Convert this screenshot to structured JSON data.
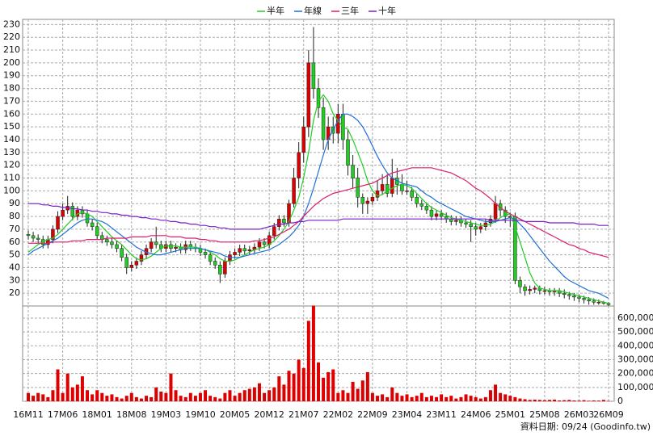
{
  "chart_data": {
    "type": "candlestick",
    "legend": "top",
    "grid": true,
    "up_color": "#dd0000",
    "down_color": "#22cc22",
    "volume_color": "#dd0000",
    "footnote": "資料日期: 09/24 (Goodinfo.tw)",
    "categories": [
      "16M11",
      null,
      null,
      null,
      null,
      null,
      null,
      "17M06",
      null,
      null,
      null,
      null,
      null,
      null,
      "18M01",
      null,
      null,
      null,
      null,
      null,
      null,
      "18M08",
      null,
      null,
      null,
      null,
      null,
      null,
      "19M03",
      null,
      null,
      null,
      null,
      null,
      null,
      "19M10",
      null,
      null,
      null,
      null,
      null,
      null,
      "20M05",
      null,
      null,
      null,
      null,
      null,
      null,
      "20M12",
      null,
      null,
      null,
      null,
      null,
      null,
      "21M07",
      null,
      null,
      null,
      null,
      null,
      null,
      "22M02",
      null,
      null,
      null,
      null,
      null,
      null,
      "22M09",
      null,
      null,
      null,
      null,
      null,
      null,
      "23M04",
      null,
      null,
      null,
      null,
      null,
      null,
      "23M11",
      null,
      null,
      null,
      null,
      null,
      null,
      "24M06",
      null,
      null,
      null,
      null,
      null,
      null,
      "25M01",
      null,
      null,
      null,
      null,
      null,
      null,
      "25M08",
      null,
      null,
      null,
      null,
      null,
      null,
      "26M03",
      null,
      null,
      null,
      null,
      null,
      "26M09"
    ],
    "open": [
      66,
      65,
      63,
      62,
      58,
      62,
      70,
      80,
      85,
      88,
      80,
      85,
      82,
      75,
      72,
      65,
      62,
      60,
      58,
      55,
      48,
      40,
      42,
      45,
      50,
      55,
      60,
      58,
      55,
      58,
      55,
      56,
      54,
      58,
      56,
      55,
      52,
      50,
      45,
      42,
      35,
      45,
      50,
      52,
      55,
      53,
      54,
      56,
      60,
      58,
      65,
      72,
      78,
      75,
      90,
      110,
      130,
      150,
      200,
      180,
      165,
      140,
      150,
      145,
      160,
      140,
      120,
      110,
      95,
      90,
      92,
      95,
      100,
      105,
      98,
      110,
      105,
      100,
      100,
      95,
      90,
      88,
      85,
      80,
      82,
      80,
      78,
      76,
      77,
      75,
      74,
      72,
      70,
      72,
      75,
      78,
      90,
      85,
      80,
      80,
      30,
      25,
      22,
      23,
      24,
      22,
      22,
      21,
      22,
      20,
      19,
      18,
      17,
      16,
      15,
      14,
      13,
      13,
      12
    ],
    "high": [
      69,
      68,
      66,
      65,
      65,
      73,
      84,
      90,
      96,
      91,
      88,
      88,
      85,
      78,
      75,
      68,
      65,
      63,
      61,
      58,
      51,
      45,
      48,
      53,
      58,
      63,
      72,
      61,
      61,
      61,
      59,
      59,
      61,
      61,
      59,
      58,
      55,
      53,
      48,
      45,
      48,
      53,
      55,
      58,
      58,
      57,
      59,
      63,
      63,
      68,
      75,
      81,
      81,
      93,
      118,
      138,
      158,
      210,
      228,
      188,
      173,
      158,
      158,
      168,
      168,
      148,
      128,
      118,
      98,
      95,
      98,
      108,
      113,
      113,
      125,
      118,
      113,
      108,
      103,
      98,
      93,
      91,
      88,
      85,
      85,
      83,
      81,
      80,
      80,
      78,
      77,
      75,
      75,
      78,
      81,
      96,
      93,
      88,
      83,
      83,
      33,
      27,
      26,
      26,
      26,
      25,
      24,
      24,
      24,
      23,
      21,
      20,
      19,
      18,
      17,
      16,
      15,
      14,
      13
    ],
    "low": [
      62,
      60,
      59,
      55,
      55,
      59,
      67,
      77,
      82,
      77,
      77,
      79,
      72,
      69,
      62,
      59,
      57,
      55,
      52,
      45,
      35,
      37,
      39,
      42,
      47,
      52,
      55,
      52,
      52,
      52,
      52,
      51,
      51,
      53,
      52,
      49,
      47,
      42,
      39,
      28,
      32,
      42,
      47,
      49,
      50,
      50,
      51,
      53,
      55,
      55,
      62,
      69,
      72,
      72,
      87,
      102,
      122,
      142,
      172,
      157,
      132,
      132,
      137,
      137,
      132,
      112,
      102,
      87,
      82,
      82,
      89,
      92,
      97,
      95,
      95,
      97,
      97,
      97,
      92,
      87,
      85,
      82,
      77,
      77,
      77,
      75,
      73,
      73,
      72,
      71,
      60,
      65,
      67,
      69,
      72,
      75,
      80,
      75,
      72,
      27,
      20,
      18,
      19,
      20,
      19,
      19,
      18,
      18,
      17,
      16,
      15,
      14,
      13,
      12,
      11,
      11,
      11,
      11,
      10
    ],
    "close": [
      65,
      63,
      62,
      58,
      62,
      70,
      80,
      85,
      88,
      80,
      85,
      82,
      75,
      72,
      65,
      62,
      60,
      58,
      55,
      48,
      40,
      42,
      45,
      50,
      55,
      60,
      58,
      55,
      58,
      55,
      56,
      54,
      58,
      56,
      55,
      52,
      50,
      45,
      42,
      35,
      45,
      50,
      52,
      55,
      53,
      54,
      56,
      60,
      58,
      65,
      72,
      78,
      75,
      90,
      110,
      130,
      150,
      200,
      180,
      165,
      140,
      150,
      145,
      160,
      140,
      120,
      110,
      95,
      90,
      92,
      95,
      100,
      105,
      98,
      110,
      105,
      100,
      100,
      95,
      90,
      88,
      85,
      80,
      82,
      80,
      78,
      76,
      77,
      75,
      74,
      72,
      70,
      72,
      75,
      78,
      90,
      85,
      80,
      80,
      30,
      25,
      22,
      23,
      24,
      22,
      22,
      21,
      22,
      20,
      19,
      18,
      17,
      16,
      15,
      14,
      13,
      13,
      12,
      11
    ],
    "volume": [
      60000,
      40000,
      60000,
      50000,
      30000,
      80000,
      230000,
      60000,
      200000,
      100000,
      120000,
      180000,
      80000,
      50000,
      80000,
      60000,
      40000,
      50000,
      30000,
      20000,
      40000,
      60000,
      30000,
      20000,
      40000,
      30000,
      100000,
      70000,
      60000,
      200000,
      80000,
      40000,
      30000,
      60000,
      40000,
      60000,
      80000,
      40000,
      30000,
      20000,
      60000,
      80000,
      40000,
      60000,
      80000,
      90000,
      100000,
      130000,
      60000,
      80000,
      100000,
      180000,
      120000,
      220000,
      200000,
      300000,
      240000,
      580000,
      690000,
      280000,
      170000,
      210000,
      230000,
      60000,
      80000,
      60000,
      140000,
      90000,
      150000,
      210000,
      60000,
      40000,
      50000,
      30000,
      100000,
      60000,
      40000,
      50000,
      30000,
      40000,
      60000,
      30000,
      40000,
      30000,
      50000,
      30000,
      40000,
      20000,
      30000,
      50000,
      40000,
      30000,
      20000,
      30000,
      80000,
      120000,
      60000,
      50000,
      40000,
      30000,
      20000,
      15000,
      10000,
      12000,
      10000,
      8000,
      10000,
      12000,
      6000,
      8000,
      10000,
      6000,
      5000,
      8000,
      4000,
      6000,
      5000,
      10000,
      3000
    ],
    "series": [
      {
        "name": "半年",
        "color": "#22cc22",
        "values": [
          52,
          55,
          58,
          60,
          62,
          63,
          66,
          70,
          74,
          78,
          82,
          83,
          82,
          80,
          76,
          72,
          68,
          64,
          61,
          58,
          54,
          50,
          47,
          46,
          47,
          49,
          52,
          55,
          57,
          57,
          57,
          56,
          56,
          56,
          56,
          55,
          54,
          52,
          50,
          47,
          45,
          45,
          46,
          48,
          50,
          52,
          54,
          55,
          56,
          58,
          61,
          65,
          70,
          76,
          85,
          95,
          110,
          130,
          155,
          170,
          175,
          170,
          160,
          155,
          150,
          148,
          140,
          130,
          120,
          108,
          100,
          96,
          97,
          100,
          102,
          104,
          105,
          104,
          102,
          98,
          94,
          90,
          87,
          85,
          83,
          81,
          79,
          78,
          77,
          76,
          75,
          74,
          73,
          73,
          74,
          76,
          79,
          81,
          82,
          72,
          60,
          48,
          36,
          28,
          24,
          23,
          22,
          22,
          22,
          21,
          20,
          19,
          18,
          17,
          16,
          15,
          14,
          13,
          12
        ]
      },
      {
        "name": "年線",
        "color": "#1e6fd9",
        "values": [
          50,
          53,
          55,
          57,
          59,
          61,
          63,
          66,
          69,
          72,
          75,
          77,
          78,
          78,
          77,
          76,
          74,
          71,
          68,
          65,
          62,
          59,
          56,
          54,
          52,
          51,
          50,
          50,
          51,
          52,
          53,
          54,
          55,
          55,
          55,
          55,
          54,
          53,
          52,
          51,
          49,
          48,
          48,
          48,
          49,
          50,
          51,
          52,
          53,
          54,
          56,
          58,
          61,
          64,
          68,
          73,
          80,
          90,
          102,
          115,
          128,
          140,
          148,
          155,
          160,
          160,
          158,
          155,
          150,
          143,
          135,
          127,
          120,
          114,
          110,
          108,
          106,
          105,
          104,
          103,
          100,
          97,
          95,
          92,
          90,
          88,
          86,
          84,
          82,
          80,
          79,
          78,
          77,
          76,
          76,
          76,
          77,
          78,
          79,
          78,
          74,
          70,
          65,
          60,
          55,
          50,
          45,
          41,
          37,
          33,
          30,
          28,
          26,
          24,
          22,
          21,
          20,
          18,
          16
        ]
      },
      {
        "name": "三年",
        "color": "#dc1e6e",
        "values": [
          59,
          59,
          59,
          59,
          59,
          60,
          60,
          60,
          60,
          61,
          61,
          61,
          62,
          62,
          62,
          62,
          63,
          63,
          63,
          63,
          63,
          64,
          64,
          64,
          64,
          65,
          65,
          65,
          65,
          64,
          64,
          64,
          63,
          63,
          63,
          62,
          62,
          61,
          61,
          60,
          60,
          60,
          60,
          60,
          60,
          60,
          61,
          61,
          62,
          63,
          64,
          66,
          68,
          70,
          73,
          76,
          80,
          84,
          88,
          91,
          94,
          96,
          98,
          99,
          100,
          101,
          102,
          103,
          104,
          105,
          106,
          108,
          110,
          112,
          114,
          115,
          116,
          117,
          118,
          118,
          118,
          118,
          118,
          117,
          116,
          115,
          114,
          112,
          110,
          108,
          105,
          102,
          100,
          97,
          94,
          90,
          87,
          84,
          82,
          80,
          78,
          76,
          74,
          72,
          70,
          68,
          66,
          64,
          62,
          60,
          58,
          57,
          55,
          54,
          52,
          51,
          50,
          49,
          48
        ]
      },
      {
        "name": "十年",
        "color": "#7a1ec8",
        "values": [
          90,
          90,
          90,
          89,
          89,
          88,
          88,
          87,
          87,
          86,
          86,
          85,
          85,
          84,
          84,
          83,
          83,
          82,
          82,
          81,
          81,
          80,
          80,
          79,
          79,
          78,
          78,
          77,
          77,
          76,
          76,
          75,
          75,
          74,
          74,
          73,
          73,
          72,
          72,
          71,
          71,
          70,
          70,
          70,
          70,
          70,
          70,
          70,
          71,
          72,
          73,
          74,
          74,
          75,
          75,
          76,
          76,
          77,
          77,
          77,
          77,
          77,
          77,
          77,
          78,
          78,
          78,
          78,
          78,
          78,
          78,
          78,
          78,
          78,
          78,
          78,
          78,
          78,
          78,
          78,
          78,
          78,
          78,
          78,
          78,
          78,
          78,
          78,
          78,
          78,
          78,
          78,
          78,
          78,
          77,
          77,
          77,
          77,
          77,
          77,
          77,
          76,
          76,
          76,
          76,
          76,
          75,
          75,
          75,
          75,
          75,
          75,
          74,
          74,
          74,
          74,
          73,
          73,
          73
        ]
      }
    ],
    "ylim": [
      10,
      234
    ],
    "yticks": [
      20,
      30,
      40,
      50,
      60,
      70,
      80,
      90,
      100,
      110,
      120,
      130,
      140,
      150,
      160,
      170,
      180,
      190,
      200,
      210,
      220,
      230
    ],
    "volume_ylim": [
      0,
      687000
    ],
    "volume_yticks": [
      {
        "value": 0,
        "label": "0"
      },
      {
        "value": 100000,
        "label": "100,000"
      },
      {
        "value": 200000,
        "label": "200,000"
      },
      {
        "value": 300000,
        "label": "300,000"
      },
      {
        "value": 400000,
        "label": "400,000"
      },
      {
        "value": 500000,
        "label": "500,000"
      },
      {
        "value": 600000,
        "label": "600,000"
      }
    ]
  }
}
